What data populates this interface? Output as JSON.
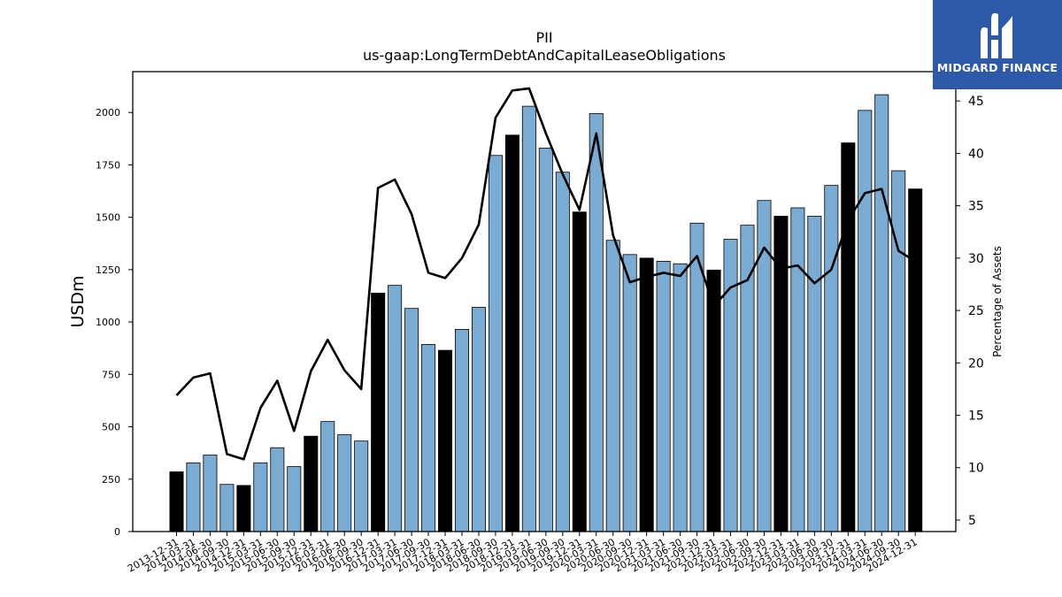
{
  "chart_data": {
    "type": "bar",
    "title": "PII",
    "subtitle": "us-gaap:LongTermDebtAndCapitalLeaseObligations",
    "ylabel": "USDm",
    "y2label": "Percentage of Assets",
    "ylim": [
      0,
      2195
    ],
    "y2lim": [
      3.9,
      47.8
    ],
    "yticks": [
      0,
      250,
      500,
      750,
      1000,
      1250,
      1500,
      1750,
      2000
    ],
    "y2ticks": [
      5,
      10,
      15,
      20,
      25,
      30,
      35,
      40,
      45
    ],
    "categories": [
      "2013-12-31",
      "2014-03-31",
      "2014-06-30",
      "2014-09-30",
      "2014-12-31",
      "2015-03-31",
      "2015-06-30",
      "2015-09-30",
      "2015-12-31",
      "2016-03-31",
      "2016-06-30",
      "2016-09-30",
      "2016-12-31",
      "2017-03-31",
      "2017-06-30",
      "2017-09-30",
      "2017-12-31",
      "2018-03-31",
      "2018-06-30",
      "2018-09-30",
      "2018-12-31",
      "2019-03-31",
      "2019-06-30",
      "2019-09-30",
      "2019-12-31",
      "2020-03-31",
      "2020-06-30",
      "2020-09-30",
      "2020-12-31",
      "2021-03-31",
      "2021-06-30",
      "2021-09-30",
      "2021-12-31",
      "2022-03-31",
      "2022-06-30",
      "2022-09-30",
      "2022-12-31",
      "2023-03-31",
      "2023-06-30",
      "2023-09-30",
      "2023-12-31",
      "2024-03-31",
      "2024-06-30",
      "2024-09-30",
      "2024-12-31"
    ],
    "series": [
      {
        "kind": "bar",
        "values": [
          285,
          328,
          365,
          225,
          220,
          328,
          400,
          310,
          455,
          525,
          462,
          432,
          1138,
          1175,
          1065,
          893,
          865,
          965,
          1070,
          1795,
          1892,
          2030,
          1830,
          1715,
          1525,
          1995,
          1390,
          1322,
          1305,
          1290,
          1278,
          1472,
          1248,
          1395,
          1462,
          1580,
          1505,
          1545,
          1505,
          1652,
          1855,
          2010,
          2085,
          1722,
          1635
        ]
      },
      {
        "kind": "line",
        "axis": "right",
        "values": [
          16.9,
          18.6,
          19.0,
          11.3,
          10.8,
          15.7,
          18.3,
          13.5,
          19.2,
          22.2,
          19.3,
          17.5,
          36.7,
          37.5,
          34.2,
          28.6,
          28.1,
          30.0,
          33.2,
          43.4,
          46.0,
          46.2,
          41.9,
          38.0,
          34.6,
          41.9,
          32.2,
          27.7,
          28.2,
          28.6,
          28.3,
          30.2,
          25.4,
          27.2,
          27.9,
          31.0,
          29.0,
          29.3,
          27.6,
          28.9,
          33.6,
          36.2,
          36.6,
          30.7,
          29.7
        ]
      }
    ],
    "bar_color": "#7aabd3",
    "highlight_color": "#000000",
    "line_color": "#000000",
    "highlight_indices": [
      0,
      4,
      8,
      12,
      16,
      20,
      24,
      28,
      32,
      36,
      40,
      44
    ],
    "grid": false
  },
  "logo": {
    "text": "MIDGARD FINANCE",
    "background": "#2d5aa8"
  }
}
